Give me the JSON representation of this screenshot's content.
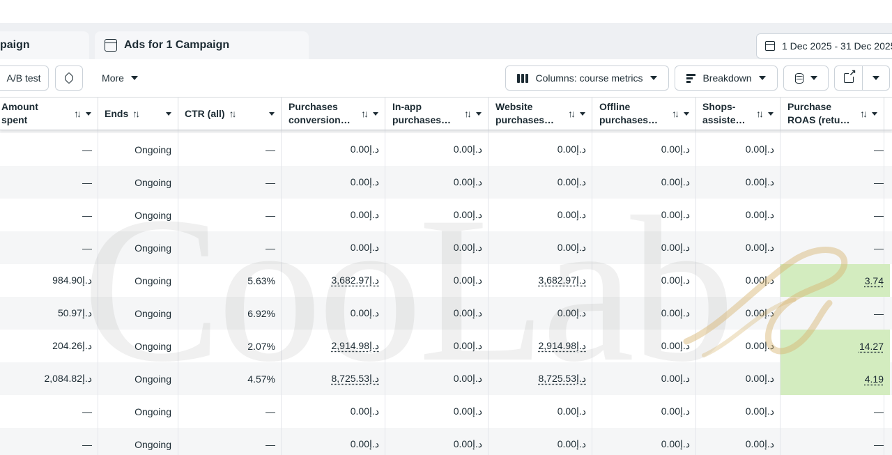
{
  "tabs": [
    {
      "label": "paign"
    },
    {
      "label": "Ads for 1 Campaign"
    }
  ],
  "date_range": "1 Dec 2025 - 31 Dec 2025",
  "toolbar": {
    "ab_test": "A/B test",
    "more": "More",
    "columns": "Columns: course metrics",
    "breakdown": "Breakdown"
  },
  "columns": [
    {
      "label": "Amount\nspent"
    },
    {
      "label": "Ends"
    },
    {
      "label": "CTR (all)"
    },
    {
      "label": "Purchases\nconversion…"
    },
    {
      "label": "In-app\npurchases…"
    },
    {
      "label": "Website\npurchases…"
    },
    {
      "label": "Offline\npurchases…"
    },
    {
      "label": "Shops-\nassiste…"
    },
    {
      "label": "Purchase\nROAS (retu…"
    }
  ],
  "sort_glyph": "↑↓",
  "rows": [
    [
      "—",
      "Ongoing",
      "—",
      "0.00د.إ",
      "0.00د.إ",
      "0.00د.إ",
      "0.00د.إ",
      "0.00د.إ",
      "—"
    ],
    [
      "—",
      "Ongoing",
      "—",
      "0.00د.إ",
      "0.00د.إ",
      "0.00د.إ",
      "0.00د.إ",
      "0.00د.إ",
      "—"
    ],
    [
      "—",
      "Ongoing",
      "—",
      "0.00د.إ",
      "0.00د.إ",
      "0.00د.إ",
      "0.00د.إ",
      "0.00د.إ",
      "—"
    ],
    [
      "—",
      "Ongoing",
      "—",
      "0.00د.إ",
      "0.00د.إ",
      "0.00د.إ",
      "0.00د.إ",
      "0.00د.إ",
      "—"
    ],
    [
      "984.90د.إ",
      "Ongoing",
      "5.63%",
      "3,682.97د.إ",
      "0.00د.إ",
      "3,682.97د.إ",
      "0.00د.إ",
      "0.00د.إ",
      "3.74"
    ],
    [
      "50.97د.إ",
      "Ongoing",
      "6.92%",
      "0.00د.إ",
      "0.00د.إ",
      "0.00د.إ",
      "0.00د.إ",
      "0.00د.إ",
      "—"
    ],
    [
      "204.26د.إ",
      "Ongoing",
      "2.07%",
      "2,914.98د.إ",
      "0.00د.إ",
      "2,914.98د.إ",
      "0.00د.إ",
      "0.00د.إ",
      "14.27"
    ],
    [
      "2,084.82د.إ",
      "Ongoing",
      "4.57%",
      "8,725.53د.إ",
      "0.00د.إ",
      "8,725.53د.إ",
      "0.00د.إ",
      "0.00د.إ",
      "4.19"
    ],
    [
      "—",
      "Ongoing",
      "—",
      "0.00د.إ",
      "0.00د.إ",
      "0.00د.إ",
      "0.00د.إ",
      "0.00د.إ",
      "—"
    ],
    [
      "—",
      "Ongoing",
      "—",
      "0.00د.إ",
      "0.00د.إ",
      "0.00د.إ",
      "0.00د.إ",
      "0.00د.إ",
      "—"
    ]
  ],
  "underlined_rows": [
    4,
    6,
    7
  ],
  "highlight_color": "#d3ecbf",
  "watermark": "CooLab"
}
